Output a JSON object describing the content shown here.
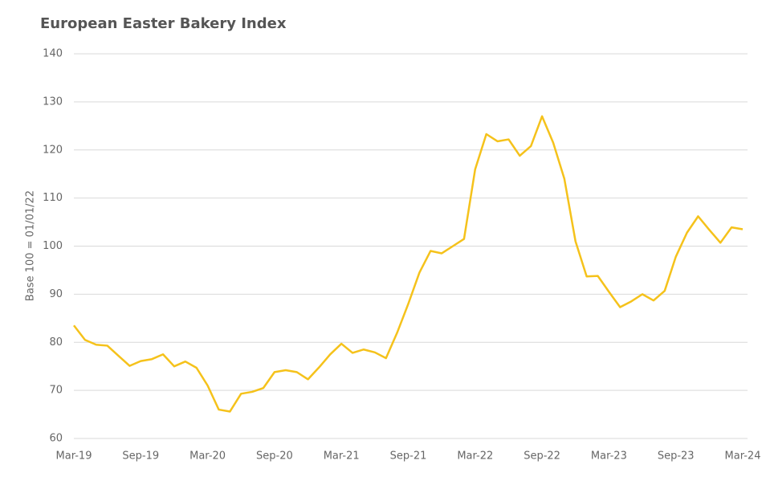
{
  "chart_data": {
    "type": "line",
    "title": "European Easter Bakery Index",
    "y_label": "Base 100 = 01/01/22",
    "categories": [
      "Mar-19",
      null,
      null,
      null,
      null,
      null,
      "Sep-19",
      null,
      null,
      null,
      null,
      null,
      "Mar-20",
      null,
      null,
      null,
      null,
      null,
      "Sep-20",
      null,
      null,
      null,
      null,
      null,
      "Mar-21",
      null,
      null,
      null,
      null,
      null,
      "Sep-21",
      null,
      null,
      null,
      null,
      null,
      "Mar-22",
      null,
      null,
      null,
      null,
      null,
      "Sep-22",
      null,
      null,
      null,
      null,
      null,
      "Mar-23",
      null,
      null,
      null,
      null,
      null,
      "Sep-23",
      null,
      null,
      null,
      null,
      null,
      "Mar-24"
    ],
    "series": [
      {
        "name": "European Easter Bakery Index",
        "color": "#f5c21b",
        "values": [
          83.5,
          80.5,
          79.5,
          79.3,
          77.2,
          75.1,
          76.1,
          76.5,
          77.5,
          75.0,
          76.0,
          74.7,
          71.0,
          66.0,
          65.6,
          69.3,
          69.7,
          70.5,
          73.8,
          74.2,
          73.8,
          72.3,
          74.8,
          77.5,
          79.7,
          77.8,
          78.5,
          77.9,
          76.7,
          82.0,
          88.0,
          94.5,
          99.0,
          98.5,
          100.0,
          101.5,
          116.0,
          123.3,
          121.8,
          122.2,
          118.8,
          120.8,
          127.0,
          121.5,
          114.0,
          101.0,
          93.7,
          93.8,
          90.5,
          87.3,
          88.5,
          90.0,
          88.7,
          90.7,
          97.8,
          102.8,
          106.2,
          103.4,
          100.7,
          103.9,
          103.5
        ]
      }
    ],
    "ylim": [
      60,
      140
    ],
    "yticks": [
      60,
      70,
      80,
      90,
      100,
      110,
      120,
      130,
      140
    ],
    "grid": true
  }
}
